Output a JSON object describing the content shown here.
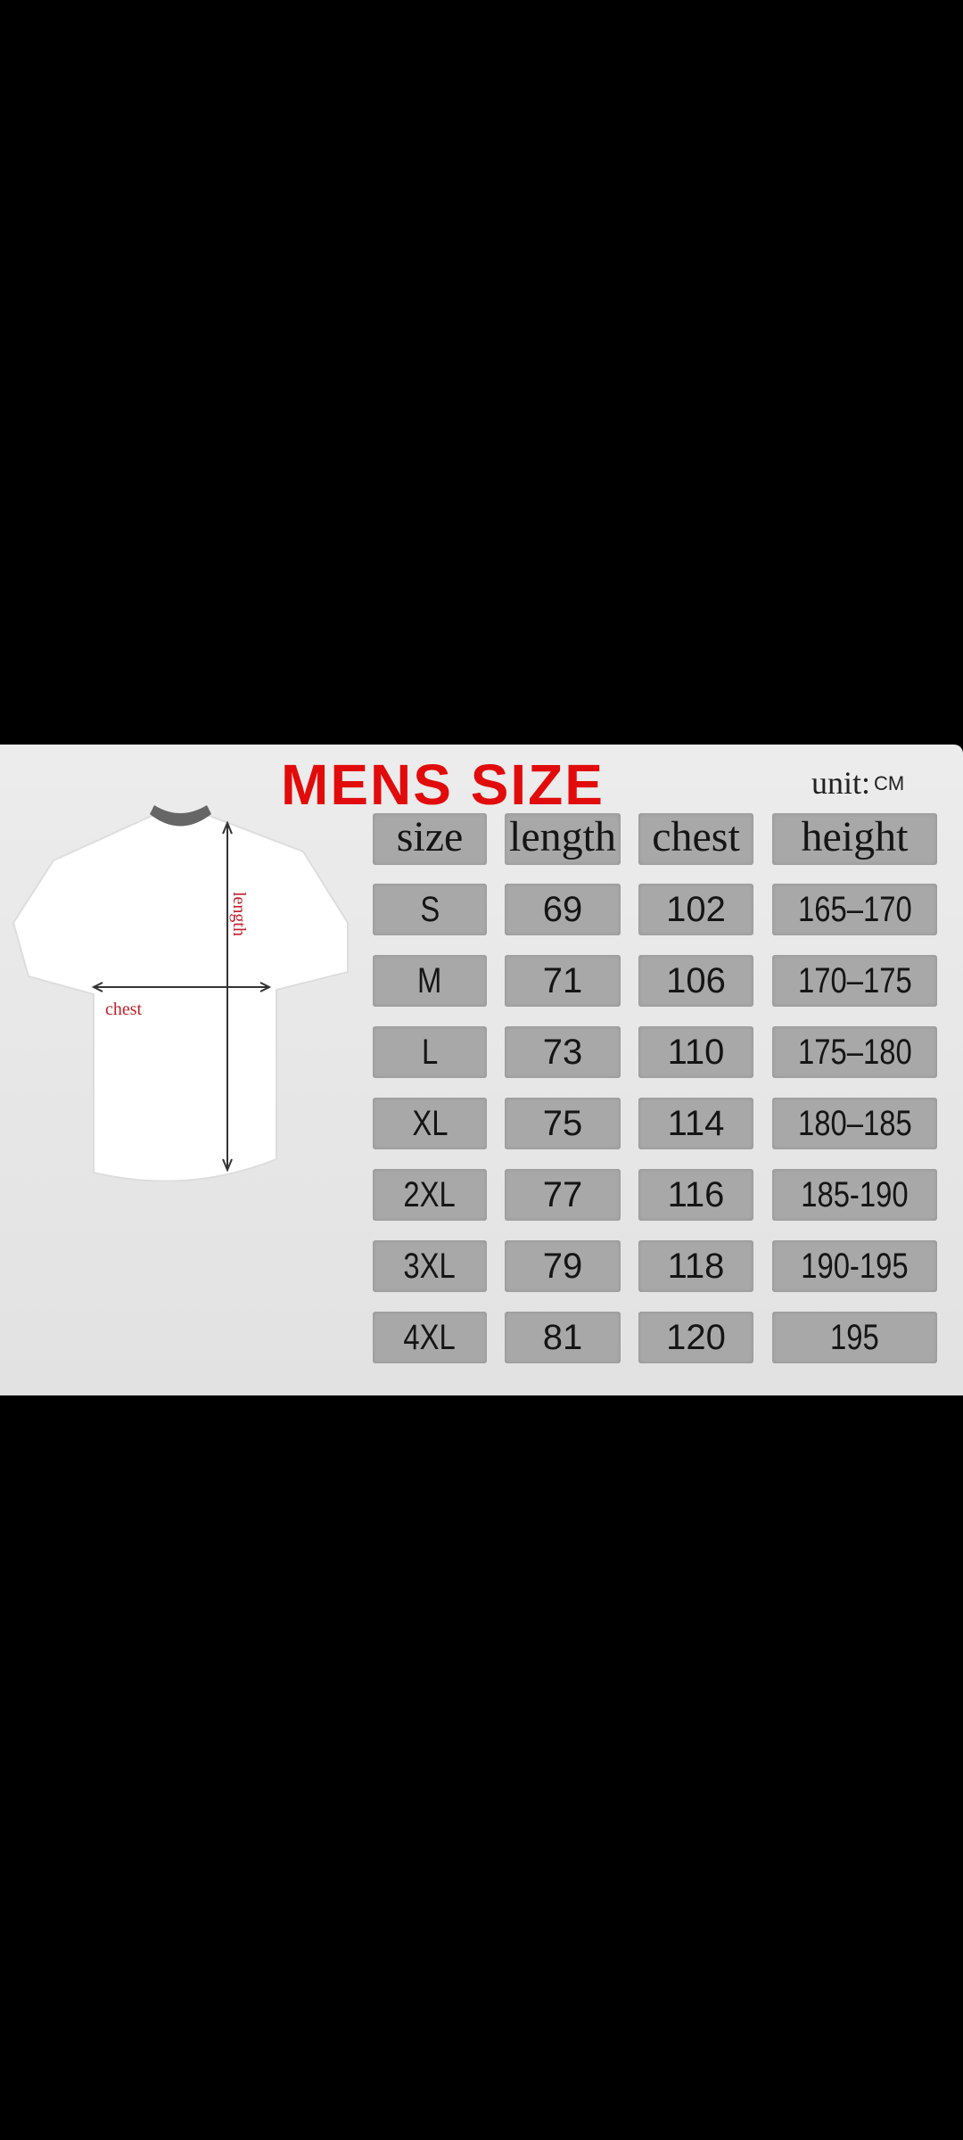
{
  "title": "MENS SIZE",
  "unit_label": "unit",
  "unit_sep": ":",
  "unit_value": "CM",
  "diagram": {
    "length_label": "length",
    "chest_label": "chest"
  },
  "colors": {
    "title": "#e20b0b",
    "cell": "#a8a8a8",
    "panel": "#e6e6e6",
    "label": "#c0202a"
  },
  "table": {
    "headers": [
      "size",
      "length",
      "chest",
      "height"
    ],
    "rows": [
      [
        "S",
        "69",
        "102",
        "165–170"
      ],
      [
        "M",
        "71",
        "106",
        "170–175"
      ],
      [
        "L",
        "73",
        "110",
        "175–180"
      ],
      [
        "XL",
        "75",
        "114",
        "180–185"
      ],
      [
        "2XL",
        "77",
        "116",
        "185-190"
      ],
      [
        "3XL",
        "79",
        "118",
        "190-195"
      ],
      [
        "4XL",
        "81",
        "120",
        "195"
      ]
    ]
  }
}
